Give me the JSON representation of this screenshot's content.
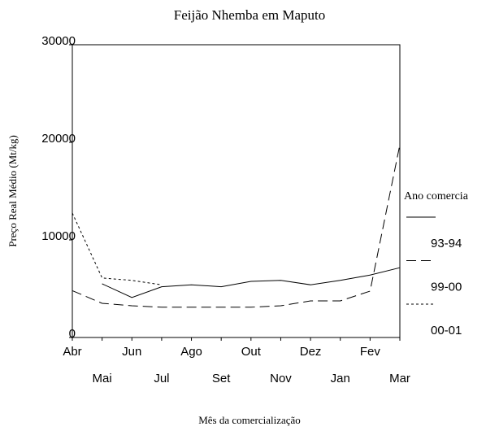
{
  "chart_data": {
    "type": "line",
    "title": "Feijão Nhemba em Maputo",
    "x_label": "Mês da comercialização",
    "y_label": "Preço Real Médio (Mt/kg)",
    "legend_title": "Ano comercia",
    "categories": [
      "Abr",
      "Mai",
      "Jun",
      "Jul",
      "Ago",
      "Set",
      "Out",
      "Nov",
      "Dez",
      "Jan",
      "Fev",
      "Mar"
    ],
    "series": [
      {
        "name": "93-94",
        "color": "#000000",
        "dash": "solid",
        "values": [
          null,
          5500,
          4100,
          5200,
          5400,
          5200,
          5750,
          5850,
          5400,
          5850,
          6400,
          7150
        ]
      },
      {
        "name": "99-00",
        "color": "#000000",
        "dash": "dashed",
        "values": [
          4800,
          3500,
          3250,
          3100,
          3100,
          3100,
          3100,
          3250,
          3750,
          3750,
          4750,
          19750
        ]
      },
      {
        "name": "00-01",
        "color": "#000000",
        "dash": "dotted",
        "values": [
          12750,
          6100,
          5850,
          5400,
          null,
          null,
          null,
          null,
          null,
          null,
          null,
          null
        ]
      }
    ],
    "ylim": [
      0,
      30000
    ],
    "yticks": [
      0,
      10000,
      20000,
      30000
    ],
    "grid": false
  }
}
